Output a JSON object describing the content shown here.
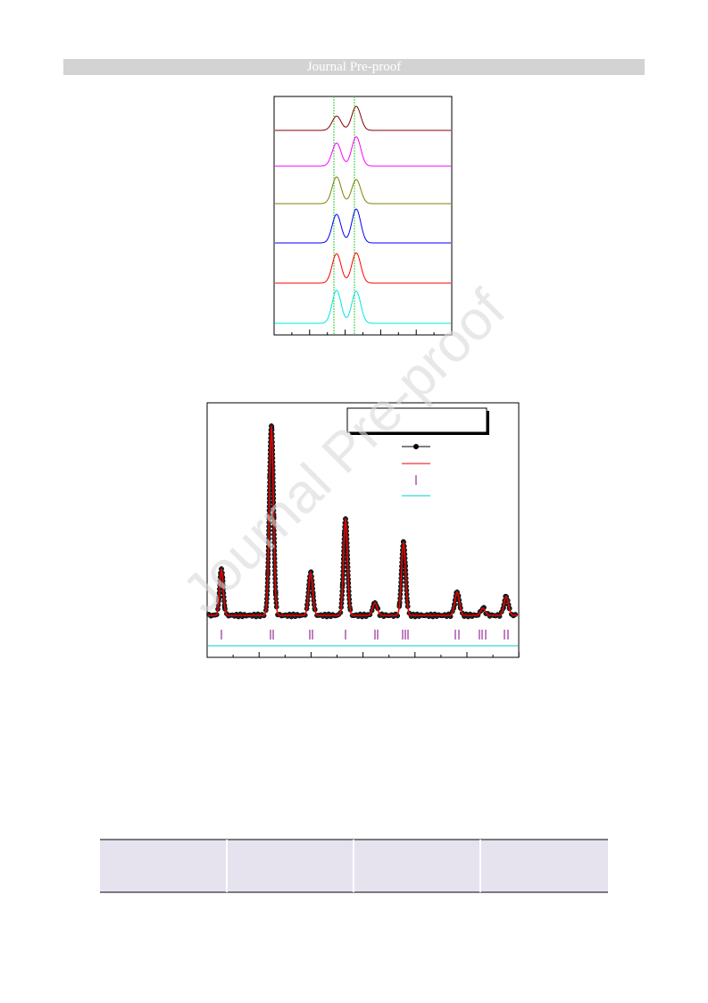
{
  "header": {
    "title": "Journal Pre-proof"
  },
  "watermark": "Journal Pre-proof"
}
